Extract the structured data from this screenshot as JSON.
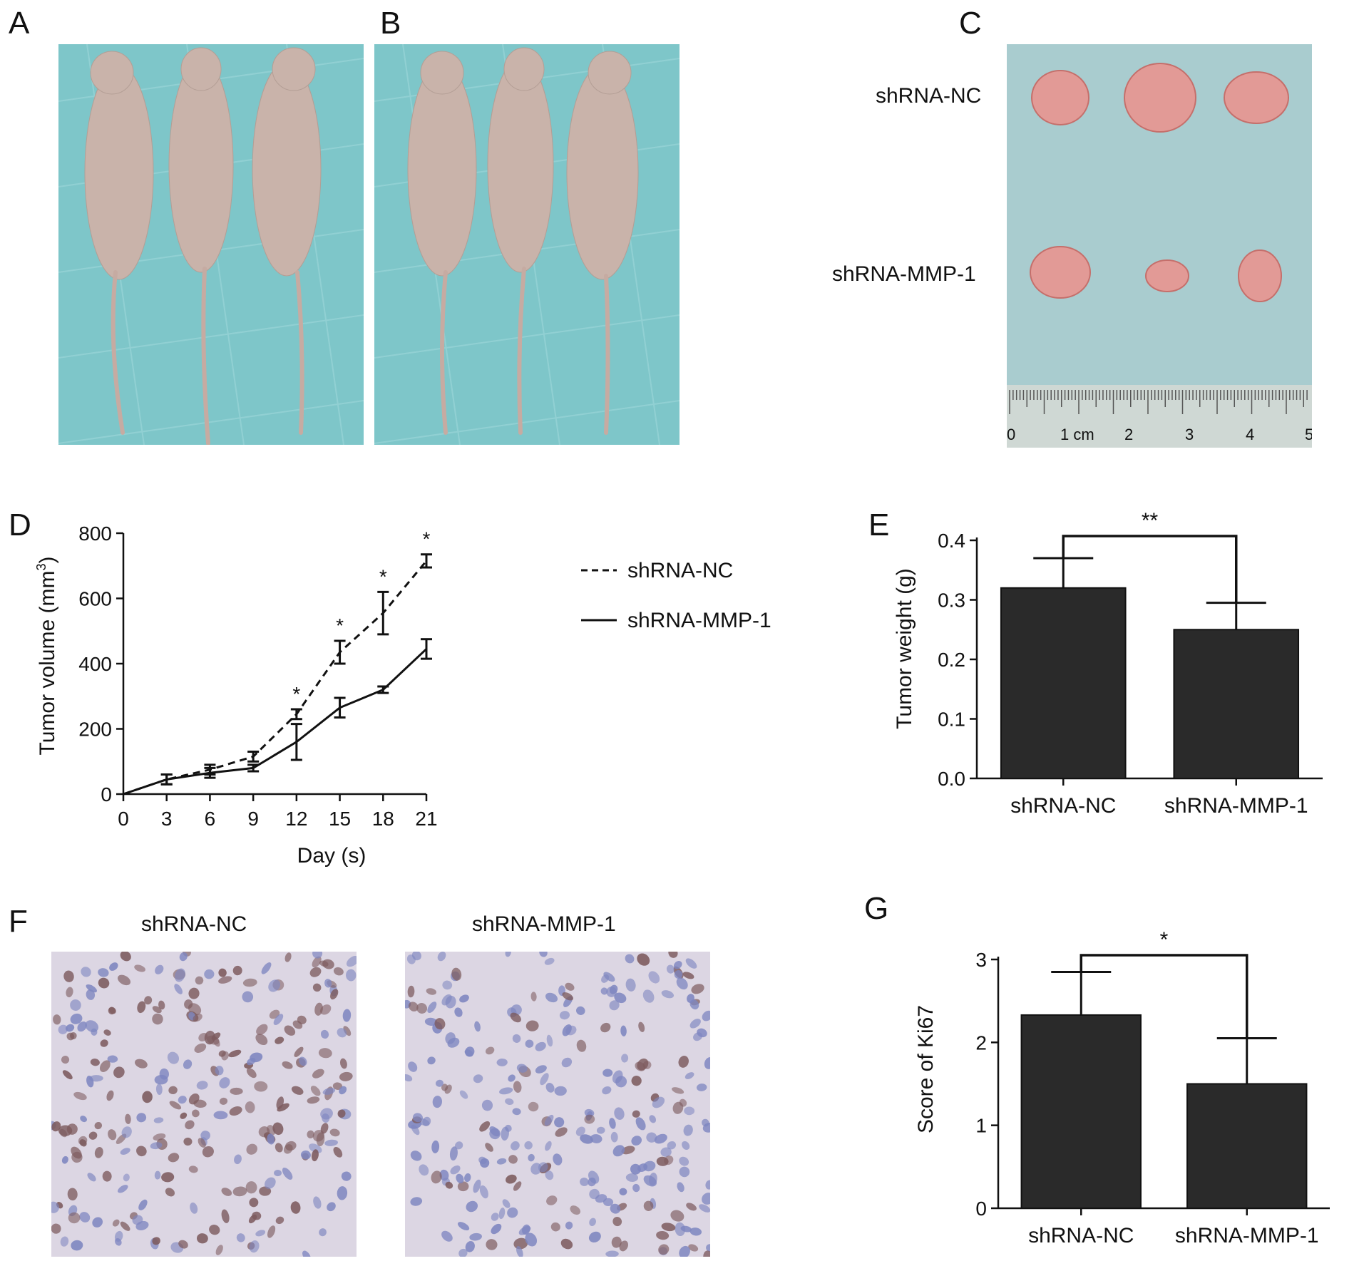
{
  "panels": {
    "A": "A",
    "B": "B",
    "C": "C",
    "D": "D",
    "E": "E",
    "F": "F",
    "G": "G"
  },
  "photo_c": {
    "row_labels": [
      "shRNA-NC",
      "shRNA-MMP-1"
    ],
    "ruler_labels": [
      "0",
      "1 cm",
      "2",
      "3",
      "4",
      "5"
    ]
  },
  "histology_f": {
    "titles": [
      "shRNA-NC",
      "shRNA-MMP-1"
    ]
  },
  "colors": {
    "photo_bg": "#7ec6c9",
    "photo_bg_c": "#a9cccf",
    "mouse": "#c9b3aa",
    "tumor": "#e29a96",
    "tissue_bg": "#dcd6e3",
    "nucleus_brown": "#7d5b5e",
    "nucleus_blue": "#7e86c0",
    "bar": "#2a2a2a"
  },
  "chart_data": [
    {
      "panel": "D",
      "type": "line",
      "xlabel": "Day (s)",
      "ylabel": "Tumor volume (mm³)",
      "ylabel_base": "Tumor volume (mm",
      "ylabel_sup": "3",
      "ylabel_end": ")",
      "x": [
        0,
        3,
        6,
        9,
        12,
        15,
        18,
        21
      ],
      "xticks": [
        "0",
        "3",
        "6",
        "9",
        "12",
        "15",
        "18",
        "21"
      ],
      "yticks": [
        "0",
        "200",
        "400",
        "600",
        "800"
      ],
      "xlim": [
        0,
        21
      ],
      "ylim": [
        0,
        800
      ],
      "series": [
        {
          "name": "shRNA-NC",
          "style": "dashed",
          "values": [
            0,
            45,
            75,
            115,
            245,
            435,
            555,
            715
          ],
          "errors": [
            0,
            15,
            15,
            15,
            15,
            35,
            65,
            20
          ]
        },
        {
          "name": "shRNA-MMP-1",
          "style": "solid",
          "values": [
            0,
            45,
            65,
            80,
            160,
            265,
            320,
            445
          ],
          "errors": [
            0,
            15,
            15,
            10,
            55,
            30,
            10,
            30
          ]
        }
      ],
      "significance": [
        {
          "x": 12,
          "label": "*"
        },
        {
          "x": 15,
          "label": "*"
        },
        {
          "x": 18,
          "label": "*"
        },
        {
          "x": 21,
          "label": "*"
        }
      ],
      "legend_position": "right"
    },
    {
      "panel": "E",
      "type": "bar",
      "ylabel": "Tumor weight (g)",
      "categories": [
        "shRNA-NC",
        "shRNA-MMP-1"
      ],
      "values": [
        0.32,
        0.25
      ],
      "errors": [
        0.05,
        0.045
      ],
      "yticks": [
        "0.0",
        "0.1",
        "0.2",
        "0.3",
        "0.4"
      ],
      "ylim": [
        0,
        0.4
      ],
      "significance": "**"
    },
    {
      "panel": "G",
      "type": "bar",
      "ylabel": "Score of Ki67",
      "categories": [
        "shRNA-NC",
        "shRNA-MMP-1"
      ],
      "values": [
        2.33,
        1.5
      ],
      "errors": [
        0.52,
        0.55
      ],
      "yticks": [
        "0",
        "1",
        "2",
        "3"
      ],
      "ylim": [
        0,
        3
      ],
      "significance": "*"
    }
  ]
}
